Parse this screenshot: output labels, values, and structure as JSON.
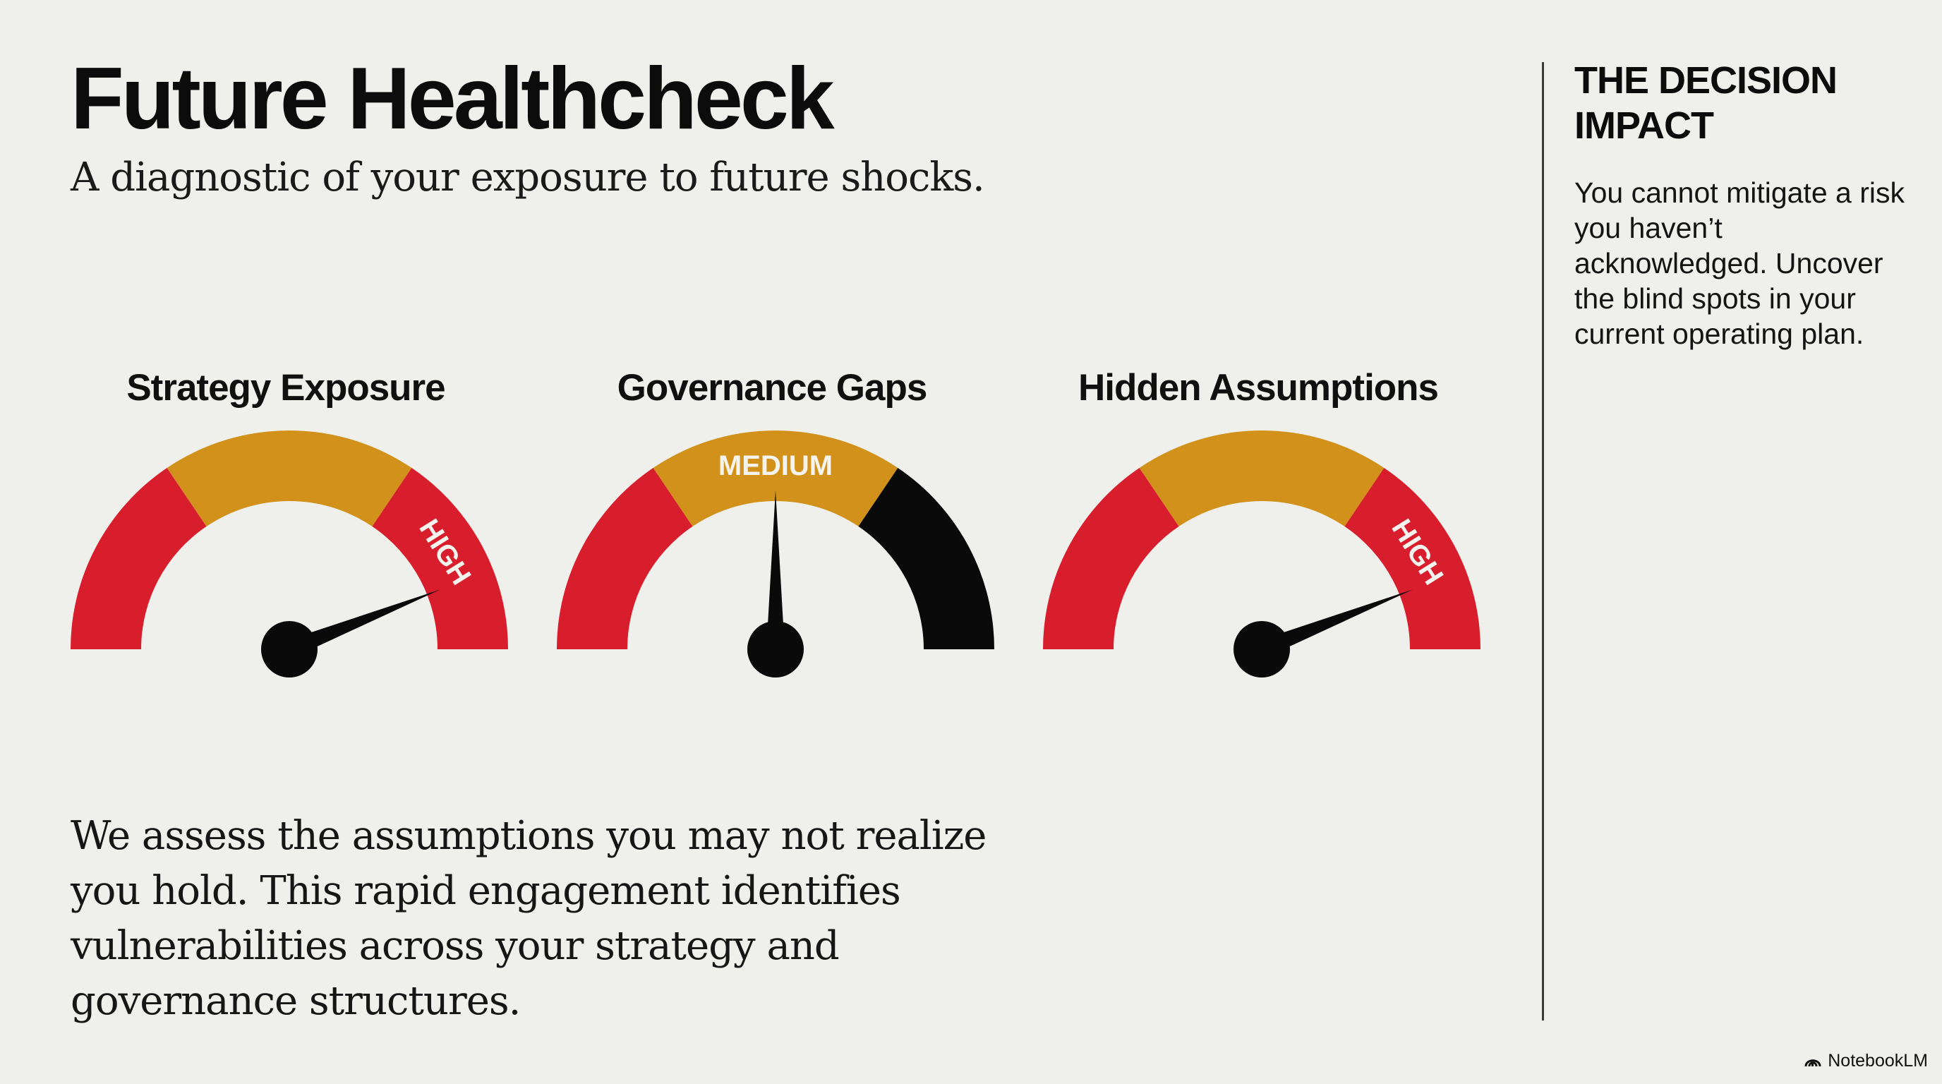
{
  "title": "Future Healthcheck",
  "subtitle": "A diagnostic of your exposure to future shocks.",
  "gauges": [
    {
      "label": "Strategy Exposure",
      "level": "HIGH",
      "needle_percent": 88
    },
    {
      "label": "Governance Gaps",
      "level": "MEDIUM",
      "needle_percent": 50
    },
    {
      "label": "Hidden Assumptions",
      "level": "HIGH",
      "needle_percent": 88
    }
  ],
  "body_text": "We assess the assumptions you may not realize you hold. This rapid engagement identifies vulnerabilities across your strategy and governance structures.",
  "sidebar": {
    "heading": "THE DECISION IMPACT",
    "text": "You cannot mitigate a risk you haven’t acknowledged. Uncover the blind spots in your current operating plan."
  },
  "brand": {
    "name": "NotebookLM",
    "icon": "notebooklm-logo-icon"
  },
  "colors": {
    "background": "#efefeb",
    "red": "#d81e2c",
    "amber": "#d1911a",
    "black": "#0a0a0a",
    "text": "#111111"
  }
}
